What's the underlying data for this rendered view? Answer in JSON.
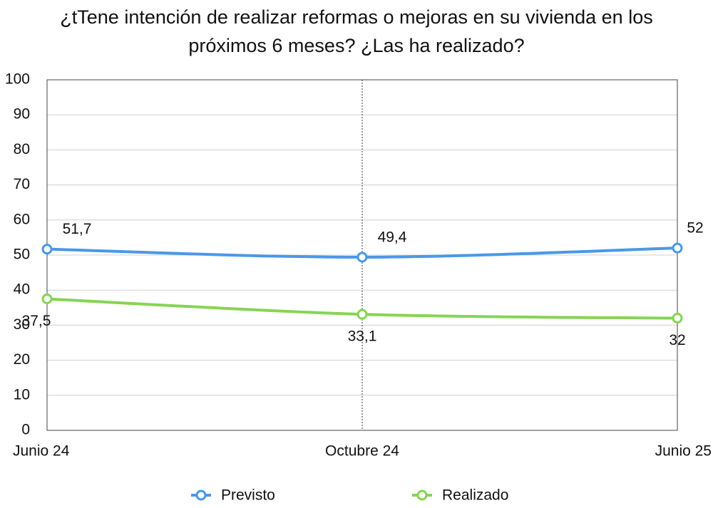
{
  "chart_data": {
    "type": "line",
    "title": "¿tTene intención de realizar reformas o mejoras en su vivienda en los próximos 6 meses? ¿Las ha realizado?",
    "categories": [
      "Junio 24",
      "Octubre 24",
      "Junio 25"
    ],
    "series": [
      {
        "name": "Previsto",
        "color": "#4a98e8",
        "values": [
          51.7,
          49.4,
          52
        ],
        "value_labels": [
          "51,7",
          "49,4",
          "52"
        ]
      },
      {
        "name": "Realizado",
        "color": "#86d454",
        "values": [
          37.5,
          33.1,
          32
        ],
        "value_labels": [
          "37,5",
          "33,1",
          "32"
        ]
      }
    ],
    "ylim": [
      0,
      100
    ],
    "yticks": [
      0,
      10,
      20,
      30,
      40,
      50,
      60,
      70,
      80,
      90,
      100
    ],
    "grid": true,
    "legend": "bottom"
  }
}
